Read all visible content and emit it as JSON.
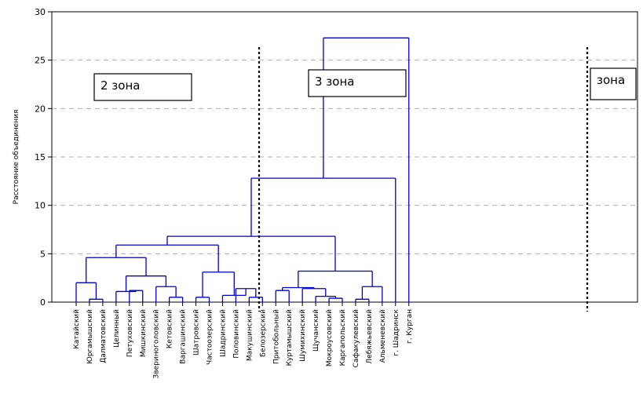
{
  "chart_data": {
    "type": "dendrogram",
    "ylabel": "Расстояние объединения",
    "ylim": [
      0,
      30
    ],
    "yticks": [
      0,
      5,
      10,
      15,
      20,
      25,
      30
    ],
    "grid": "horizontal dashed",
    "line_color": "#0000cc",
    "leaves": [
      "Катайский",
      "Юргамышский",
      "Далматовский",
      "Целинный",
      "Петуховский",
      "Мишкинский",
      "Звериноголовский",
      "Кетовский",
      "Варгашинский",
      "Шатровский",
      "Частоозерский",
      "Шадринский",
      "Половинский",
      "Макушинский",
      "Белозерский",
      "Притобольный",
      "Куртамышский",
      "Шумихинский",
      "Щучанский",
      "Мокроусовский",
      "Каргапольский",
      "Сафакулевский",
      "Лебяжьевский",
      "Альменевский",
      "г. Шадринск",
      "г. Курган"
    ],
    "merges": [
      {
        "children": [
          "L1",
          "L2"
        ],
        "height": 0.3
      },
      {
        "children": [
          "L0",
          "N0"
        ],
        "height": 2.0
      },
      {
        "children": [
          "L4",
          "L5"
        ],
        "height": 1.2
      },
      {
        "children": [
          "L3",
          "N2"
        ],
        "height": 1.1
      },
      {
        "children": [
          "L7",
          "L8"
        ],
        "height": 0.5
      },
      {
        "children": [
          "L6",
          "N4"
        ],
        "height": 1.6
      },
      {
        "children": [
          "N3",
          "N5"
        ],
        "height": 2.7
      },
      {
        "children": [
          "N1",
          "N6"
        ],
        "height": 4.6
      },
      {
        "children": [
          "L9",
          "L10"
        ],
        "height": 0.5
      },
      {
        "children": [
          "L13",
          "L14"
        ],
        "height": 0.5
      },
      {
        "children": [
          "L12",
          "N9"
        ],
        "height": 1.4
      },
      {
        "children": [
          "L11",
          "N10"
        ],
        "height": 0.7
      },
      {
        "children": [
          "N8",
          "N11"
        ],
        "height": 3.1
      },
      {
        "children": [
          "N7",
          "N12"
        ],
        "height": 5.9
      },
      {
        "children": [
          "L15",
          "L16"
        ],
        "height": 1.2
      },
      {
        "children": [
          "L19",
          "L20"
        ],
        "height": 0.4
      },
      {
        "children": [
          "L18",
          "N15"
        ],
        "height": 0.6
      },
      {
        "children": [
          "L17",
          "N16"
        ],
        "height": 1.4
      },
      {
        "children": [
          "N14",
          "N17"
        ],
        "height": 1.5
      },
      {
        "children": [
          "L21",
          "L22"
        ],
        "height": 0.3
      },
      {
        "children": [
          "N19",
          "L23"
        ],
        "height": 1.6
      },
      {
        "children": [
          "N18",
          "N20"
        ],
        "height": 3.2
      },
      {
        "children": [
          "N13",
          "N21"
        ],
        "height": 6.8
      },
      {
        "children": [
          "N22",
          "L24"
        ],
        "height": 12.8
      },
      {
        "children": [
          "N23",
          "L25"
        ],
        "height": 27.3
      }
    ],
    "annotations": [
      {
        "text": "2 зона"
      },
      {
        "text": "3 зона"
      },
      {
        "text": "зона"
      }
    ],
    "zone_dividers": [
      "Варгашинский | Шатровский",
      "Альменевский | г. Шадринск"
    ]
  }
}
